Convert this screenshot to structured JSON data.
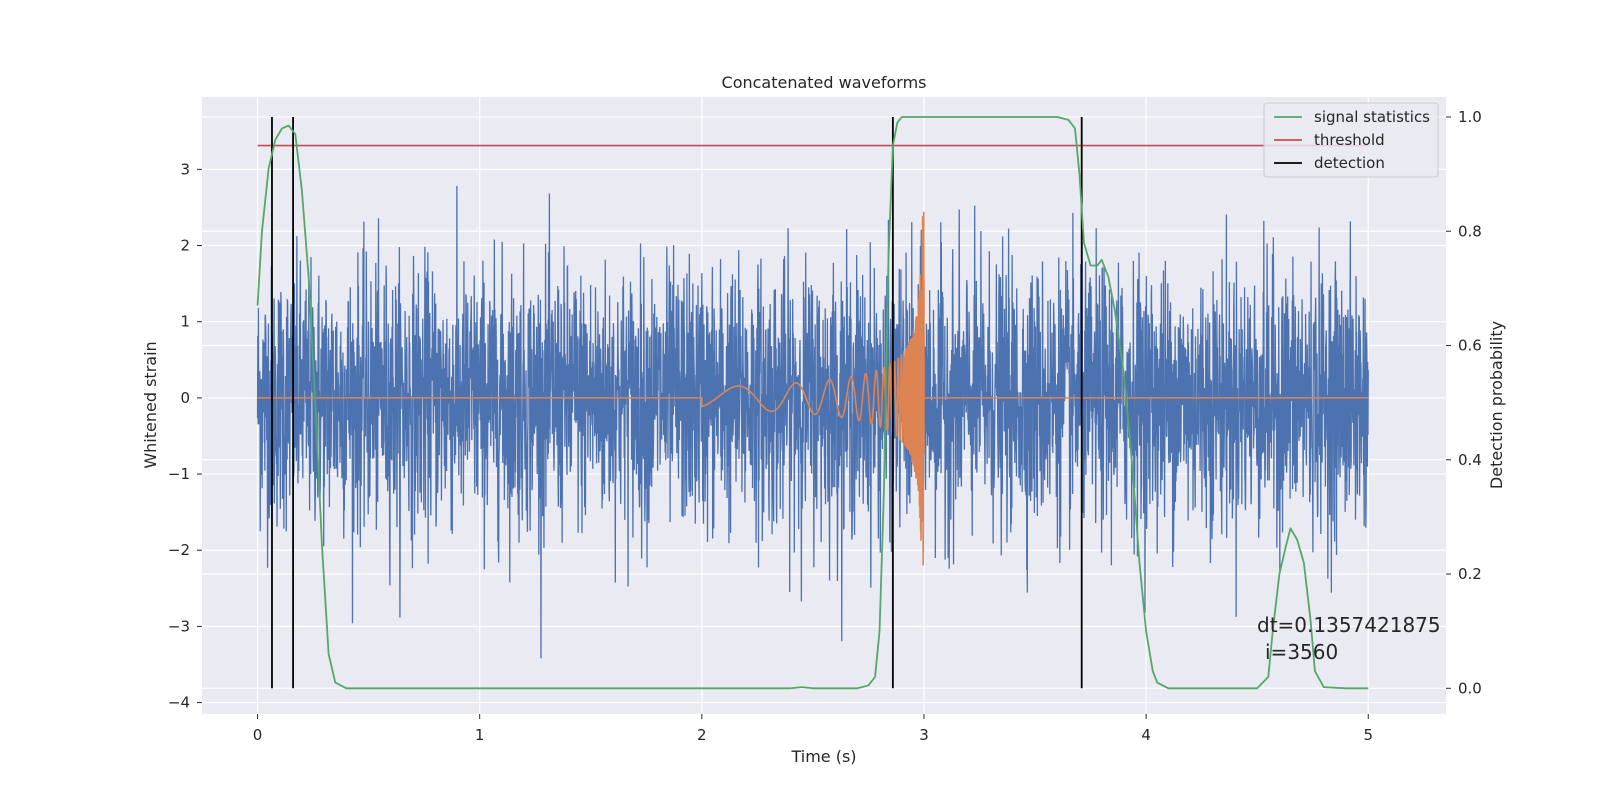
{
  "chart_data": {
    "type": "line",
    "title": "Concatenated waveforms",
    "xlabel": "Time (s)",
    "ylabel": "Whitened strain",
    "y2label": "Detection probability",
    "xlim": [
      -0.25,
      5.35
    ],
    "ylim": [
      -4.15,
      3.95
    ],
    "y2lim": [
      -0.045,
      1.035
    ],
    "x_ticks": [
      0,
      1,
      2,
      3,
      4,
      5
    ],
    "y_ticks": [
      -4,
      -3,
      -2,
      -1,
      0,
      1,
      2,
      3
    ],
    "y2_ticks": [
      0.0,
      0.2,
      0.4,
      0.6,
      0.8,
      1.0
    ],
    "grid": true,
    "legend_position": "top-right",
    "colors": {
      "strain": "#4c72b0",
      "waveform": "#dd8452",
      "statistics": "#55a868",
      "threshold": "#c44e52",
      "detection": "#000000",
      "background": "#eaeaf2"
    },
    "series": [
      {
        "name": "signal statistics",
        "axis": "right",
        "x": [
          0.0,
          0.02,
          0.05,
          0.08,
          0.11,
          0.14,
          0.17,
          0.2,
          0.23,
          0.26,
          0.29,
          0.32,
          0.35,
          0.4,
          0.6,
          1.0,
          1.5,
          2.0,
          2.4,
          2.45,
          2.5,
          2.6,
          2.7,
          2.75,
          2.78,
          2.8,
          2.82,
          2.84,
          2.86,
          2.88,
          2.9,
          3.0,
          3.3,
          3.6,
          3.65,
          3.68,
          3.7,
          3.72,
          3.75,
          3.78,
          3.8,
          3.83,
          3.86,
          3.9,
          3.94,
          3.97,
          4.0,
          4.03,
          4.05,
          4.1,
          4.3,
          4.5,
          4.55,
          4.57,
          4.6,
          4.63,
          4.65,
          4.68,
          4.71,
          4.74,
          4.76,
          4.8,
          4.9,
          5.0
        ],
        "y": [
          0.67,
          0.8,
          0.91,
          0.96,
          0.98,
          0.985,
          0.97,
          0.87,
          0.72,
          0.5,
          0.25,
          0.06,
          0.01,
          0.0,
          0.0,
          0.0,
          0.0,
          0.0,
          0.0,
          0.002,
          0.0,
          0.0,
          0.0,
          0.005,
          0.02,
          0.1,
          0.35,
          0.75,
          0.95,
          0.99,
          1.0,
          1.0,
          1.0,
          1.0,
          0.995,
          0.98,
          0.9,
          0.78,
          0.74,
          0.74,
          0.75,
          0.72,
          0.66,
          0.55,
          0.38,
          0.22,
          0.1,
          0.03,
          0.01,
          0.0,
          0.0,
          0.0,
          0.02,
          0.1,
          0.2,
          0.25,
          0.28,
          0.26,
          0.22,
          0.12,
          0.03,
          0.002,
          0.0,
          0.0
        ]
      },
      {
        "name": "threshold",
        "axis": "right",
        "x": [
          0.0,
          5.0
        ],
        "y": [
          0.95,
          0.95
        ]
      },
      {
        "name": "detection",
        "axis": "right",
        "x": [
          0.065,
          0.16,
          2.86,
          3.71
        ]
      }
    ],
    "strain_noise": {
      "x_range": [
        0.0,
        5.0
      ],
      "amplitude_peak_range": [
        -3.9,
        3.6
      ]
    },
    "waveform": {
      "x_range": [
        2.0,
        3.0
      ],
      "y_peak": 2.45,
      "y_min": -2.2
    },
    "annotations": [
      "dt=0.1357421875",
      "i=3560"
    ]
  }
}
